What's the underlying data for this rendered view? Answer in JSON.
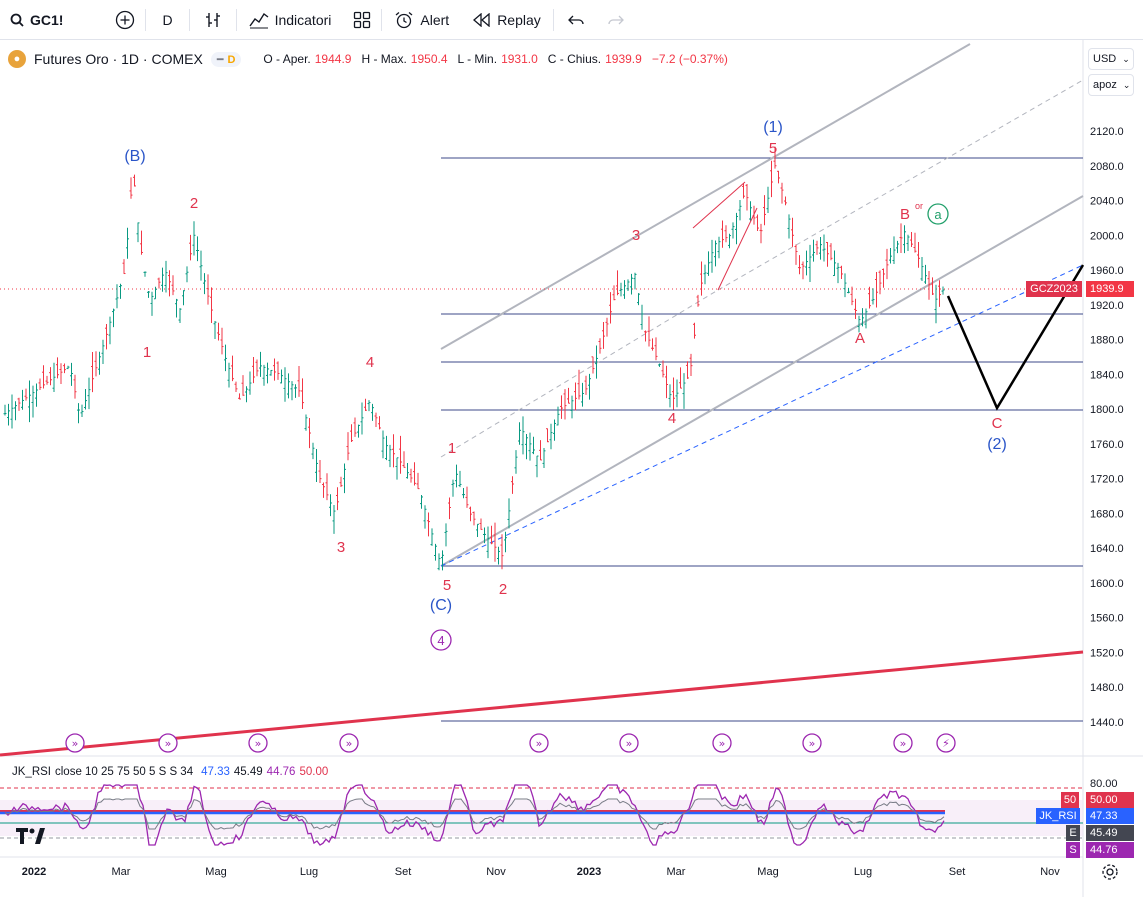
{
  "toolbar": {
    "symbol": "GC1!",
    "interval": "D",
    "indicators_label": "Indicatori",
    "alert_label": "Alert",
    "replay_label": "Replay"
  },
  "header": {
    "title": "Futures Oro · 1D · COMEX",
    "badge_d": "D",
    "open_label": "O - Aper.",
    "open": "1944.9",
    "high_label": "H - Max.",
    "high": "1950.4",
    "low_label": "L - Min.",
    "low": "1931.0",
    "close_label": "C - Chius.",
    "close": "1939.9",
    "change": "−7.2 (−0.37%)"
  },
  "controls": {
    "currency": "USD",
    "scale": "apoz"
  },
  "price_axis": [
    "2120.0",
    "2080.0",
    "2040.0",
    "2000.0",
    "1960.0",
    "1920.0",
    "1880.0",
    "1840.0",
    "1800.0",
    "1760.0",
    "1720.0",
    "1680.0",
    "1640.0",
    "1600.0",
    "1560.0",
    "1520.0",
    "1480.0",
    "1440.0"
  ],
  "time_axis": [
    "2022",
    "Mar",
    "Mag",
    "Lug",
    "Set",
    "Nov",
    "2023",
    "Mar",
    "Mag",
    "Lug",
    "Set",
    "Nov"
  ],
  "current_price": {
    "label": "GCZ2023",
    "value": "1939.9"
  },
  "waves": {
    "red": [
      "1",
      "2",
      "3",
      "4",
      "5",
      "1",
      "2",
      "3",
      "4",
      "5",
      "A",
      "B",
      "C"
    ],
    "blue": [
      "(B)",
      "(C)",
      "(1)",
      "(2)"
    ],
    "circle_a": "a",
    "circle_4": "4",
    "or": "or"
  },
  "rsi": {
    "name": "JK_RSI",
    "params": "close 10 25 75 50 5 S S 34",
    "v1": "47.33",
    "v2": "45.49",
    "v3": "44.76",
    "v4": "50.00",
    "axis_top": "80.00",
    "tag_50": "50",
    "tag_50v": "50.00",
    "tag_rsi": "JK_RSI",
    "tag_rsiv": "47.33",
    "tag_e": "E",
    "tag_ev": "45.49",
    "tag_s": "S",
    "tag_sv": "44.76"
  },
  "colors": {
    "up": "#089981",
    "down": "#f23645",
    "wave_red": "#e0334d",
    "wave_blue": "#2a55c8"
  }
}
